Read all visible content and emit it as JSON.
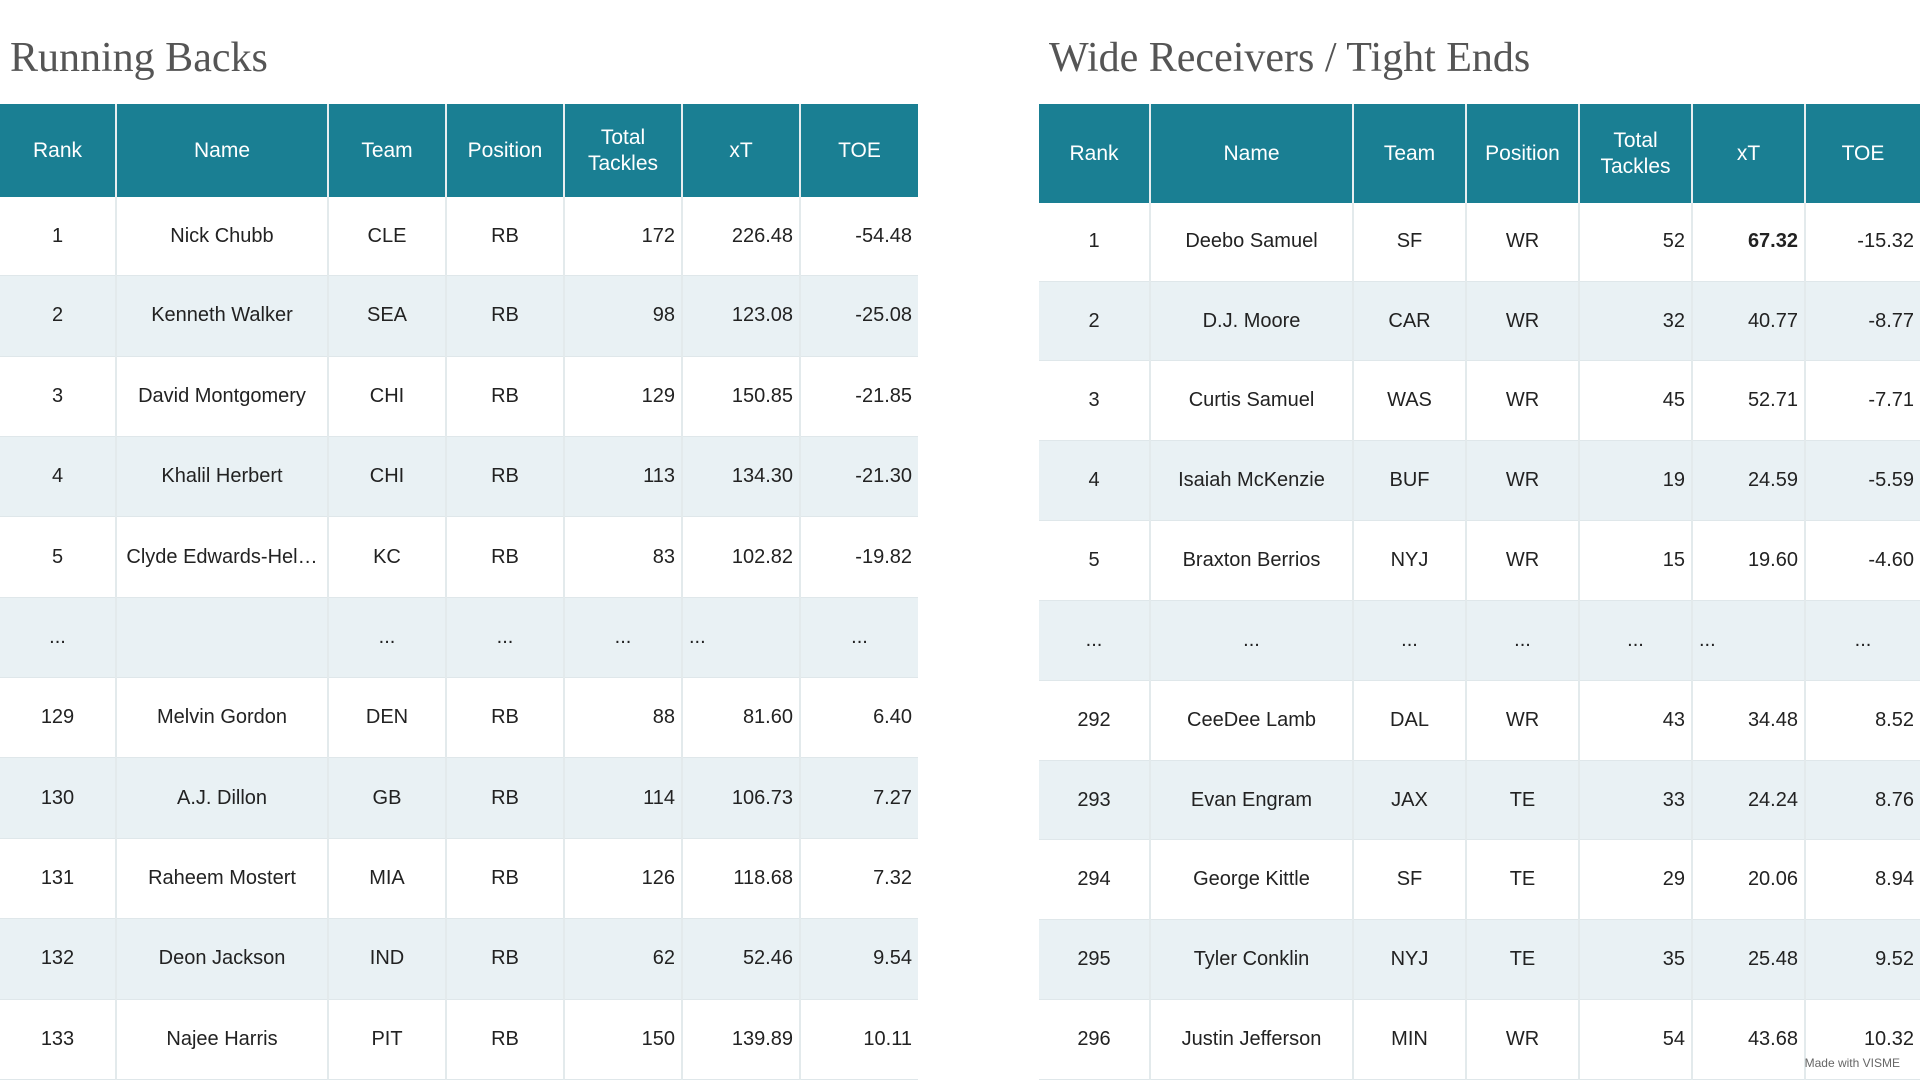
{
  "rb": {
    "title": "Running Backs",
    "headers": [
      "Rank",
      "Name",
      "Team",
      "Position",
      "Total Tackles",
      "xT",
      "TOE"
    ],
    "rows": [
      [
        "1",
        "Nick Chubb",
        "CLE",
        "RB",
        "172",
        "226.48",
        "-54.48"
      ],
      [
        "2",
        "Kenneth Walker",
        "SEA",
        "RB",
        "98",
        "123.08",
        "-25.08"
      ],
      [
        "3",
        "David Montgomery",
        "CHI",
        "RB",
        "129",
        "150.85",
        "-21.85"
      ],
      [
        "4",
        "Khalil Herbert",
        "CHI",
        "RB",
        "113",
        "134.30",
        "-21.30"
      ],
      [
        "5",
        "Clyde Edwards-Hel…",
        "KC",
        "RB",
        "83",
        "102.82",
        "-19.82"
      ],
      [
        "...",
        "",
        "...",
        "...",
        "...",
        "...",
        "..."
      ],
      [
        "129",
        "Melvin Gordon",
        "DEN",
        "RB",
        "88",
        "81.60",
        "6.40"
      ],
      [
        "130",
        "A.J. Dillon",
        "GB",
        "RB",
        "114",
        "106.73",
        "7.27"
      ],
      [
        "131",
        "Raheem Mostert",
        "MIA",
        "RB",
        "126",
        "118.68",
        "7.32"
      ],
      [
        "132",
        "Deon Jackson",
        "IND",
        "RB",
        "62",
        "52.46",
        "9.54"
      ],
      [
        "133",
        "Najee Harris",
        "PIT",
        "RB",
        "150",
        "139.89",
        "10.11"
      ]
    ]
  },
  "wr": {
    "title": "Wide Receivers / Tight Ends",
    "headers": [
      "Rank",
      "Name",
      "Team",
      "Position",
      "Total Tackles",
      "xT",
      "TOE"
    ],
    "rows": [
      [
        "1",
        "Deebo Samuel",
        "SF",
        "WR",
        "52",
        "67.32",
        "-15.32"
      ],
      [
        "2",
        "D.J. Moore",
        "CAR",
        "WR",
        "32",
        "40.77",
        "-8.77"
      ],
      [
        "3",
        "Curtis Samuel",
        "WAS",
        "WR",
        "45",
        "52.71",
        "-7.71"
      ],
      [
        "4",
        "Isaiah McKenzie",
        "BUF",
        "WR",
        "19",
        "24.59",
        "-5.59"
      ],
      [
        "5",
        "Braxton Berrios",
        "NYJ",
        "WR",
        "15",
        "19.60",
        "-4.60"
      ],
      [
        "...",
        "...",
        "...",
        "...",
        "...",
        "...",
        "..."
      ],
      [
        "292",
        "CeeDee Lamb",
        "DAL",
        "WR",
        "43",
        "34.48",
        "8.52"
      ],
      [
        "293",
        "Evan Engram",
        "JAX",
        "TE",
        "33",
        "24.24",
        "8.76"
      ],
      [
        "294",
        "George Kittle",
        "SF",
        "TE",
        "29",
        "20.06",
        "8.94"
      ],
      [
        "295",
        "Tyler Conklin",
        "NYJ",
        "TE",
        "35",
        "25.48",
        "9.52"
      ],
      [
        "296",
        "Justin Jefferson",
        "MIN",
        "WR",
        "54",
        "43.68",
        "10.32"
      ]
    ]
  },
  "watermark": "Made with VISME"
}
